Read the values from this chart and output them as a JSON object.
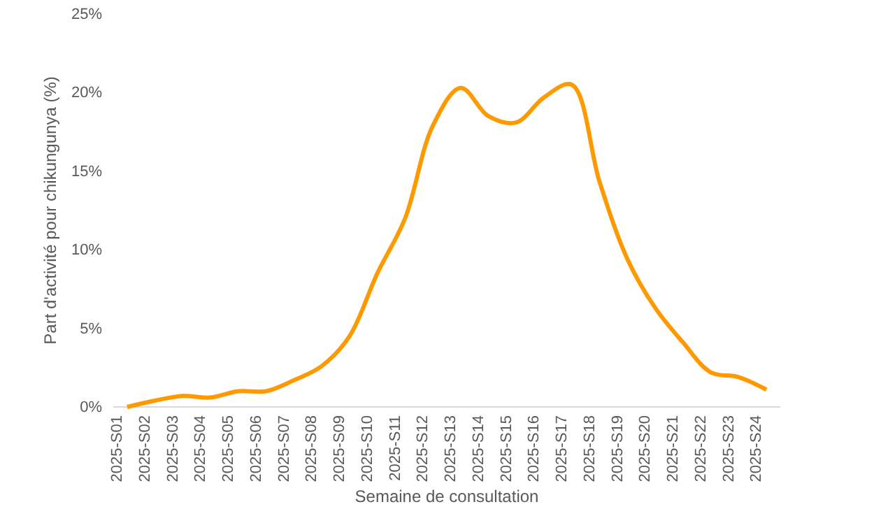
{
  "chart_data": {
    "type": "line",
    "xlabel": "Semaine de consultation",
    "ylabel": "Part d'activité pour chikungunya (%)",
    "categories": [
      "2025-S01",
      "2025-S02",
      "2025-S03",
      "2025-S04",
      "2025-S05",
      "2025-S06",
      "2025-S07",
      "2025-S08",
      "2025-S09",
      "2025-S10",
      "2025-S11",
      "2025-S12",
      "2025-S13",
      "2025-S14",
      "2025-S15",
      "2025-S16",
      "2025-S17",
      "2025-S18",
      "2025-S19",
      "2025-S20",
      "2025-S21",
      "2025-S22",
      "2025-S23",
      "2025-S24"
    ],
    "series": [
      {
        "color": "#ff9900",
        "values": [
          0,
          0.4,
          0.7,
          0.6,
          1.0,
          1.0,
          1.7,
          2.6,
          4.5,
          8.5,
          12,
          17.9,
          20.3,
          18.5,
          18.1,
          19.7,
          20.5,
          14.3,
          9.4,
          6.3,
          4.1,
          2.2,
          1.9,
          1.1
        ]
      }
    ],
    "ylim": [
      0,
      25
    ],
    "yticks": [
      {
        "value": 0,
        "label": "0%"
      },
      {
        "value": 5,
        "label": "5%"
      },
      {
        "value": 10,
        "label": "10%"
      },
      {
        "value": 15,
        "label": "15%"
      },
      {
        "value": 20,
        "label": "20%"
      },
      {
        "value": 25,
        "label": "25%"
      }
    ],
    "grid": false,
    "marker": "none",
    "line_style": "solid"
  }
}
